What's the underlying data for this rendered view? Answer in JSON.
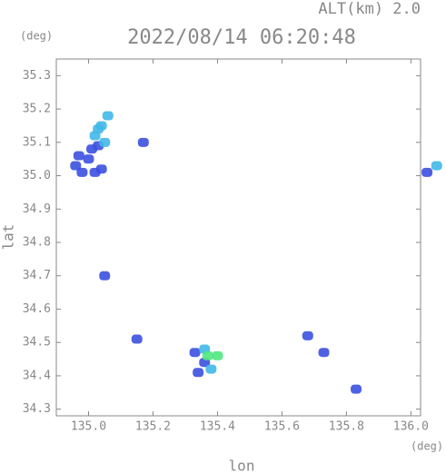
{
  "chart_data": {
    "type": "scatter",
    "title": "2022/08/14 06:20:48",
    "subtitle": "ALT(km) 2.0",
    "y_unit": "(deg)",
    "x_unit": "(deg)",
    "xlabel": "lon",
    "ylabel": "lat",
    "xlim": [
      134.9,
      136.03
    ],
    "ylim": [
      34.28,
      35.35
    ],
    "xticks": [
      {
        "value": 135,
        "label": "135.0"
      },
      135.2,
      135.4,
      135.6,
      135.8,
      {
        "value": 136,
        "label": "136.0"
      }
    ],
    "yticks": [
      34.3,
      34.4,
      34.5,
      34.6,
      34.7,
      34.8,
      34.9,
      {
        "value": 35,
        "label": "35.0"
      },
      35.1,
      35.2,
      35.3
    ],
    "series": [
      {
        "color": "#3c50e0",
        "x": [
          134.96,
          134.98,
          135.0,
          135.02,
          135.04,
          134.97,
          135.01,
          135.03,
          135.17,
          135.05,
          135.15,
          135.34,
          135.36,
          135.33,
          135.73,
          135.83,
          135.68,
          136.05
        ],
        "values": [
          35.03,
          35.01,
          35.05,
          35.01,
          35.02,
          35.06,
          35.08,
          35.09,
          35.1,
          34.7,
          34.51,
          34.41,
          34.44,
          34.47,
          34.47,
          34.36,
          34.52,
          35.01
        ]
      },
      {
        "color": "#40b8e8",
        "x": [
          135.02,
          135.04,
          135.06,
          135.05,
          135.03,
          136.08,
          135.38,
          135.36
        ],
        "values": [
          35.12,
          35.15,
          35.18,
          35.1,
          35.14,
          35.03,
          34.42,
          34.48
        ]
      },
      {
        "color": "#50e880",
        "x": [
          135.37,
          135.4
        ],
        "values": [
          34.46,
          34.46
        ]
      }
    ]
  }
}
